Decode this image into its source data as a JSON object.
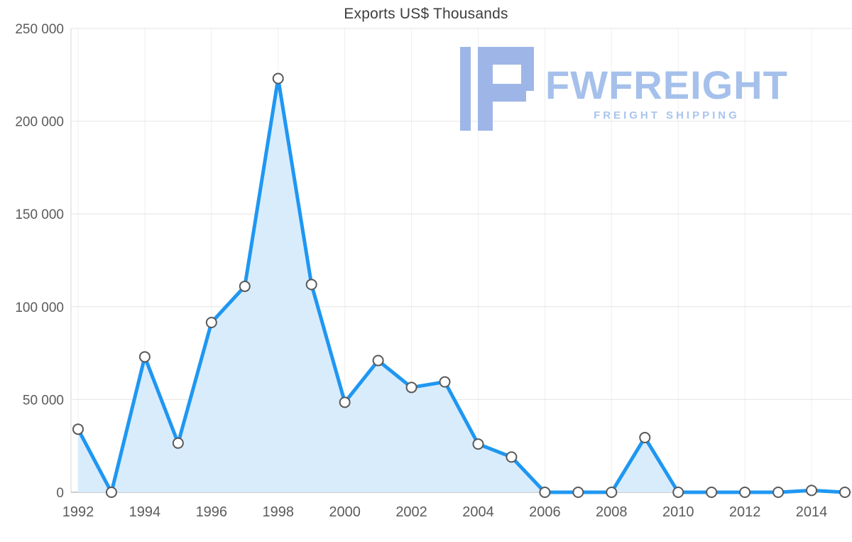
{
  "chart_data": {
    "type": "area",
    "title": "Exports US$ Thousands",
    "xlabel": "",
    "ylabel": "",
    "x": [
      1992,
      1993,
      1994,
      1995,
      1996,
      1997,
      1998,
      1999,
      2000,
      2001,
      2002,
      2003,
      2004,
      2005,
      2006,
      2007,
      2008,
      2009,
      2010,
      2011,
      2012,
      2013,
      2014,
      2015
    ],
    "values": [
      34000,
      0,
      73000,
      26500,
      91500,
      111000,
      223000,
      112000,
      48500,
      71000,
      56500,
      59500,
      26000,
      19000,
      0,
      0,
      0,
      29500,
      0,
      0,
      0,
      0,
      1000,
      0
    ],
    "ylim": [
      0,
      250000
    ],
    "y_ticks": [
      0,
      50000,
      100000,
      150000,
      200000,
      250000
    ],
    "y_tick_labels": [
      "0",
      "50 000",
      "100 000",
      "150 000",
      "200 000",
      "250 000"
    ],
    "x_tick_years": [
      1992,
      1994,
      1996,
      1998,
      2000,
      2002,
      2004,
      2006,
      2008,
      2010,
      2012,
      2014
    ],
    "grid": true,
    "legend": "none",
    "colors": {
      "line": "#1f97f2",
      "area": "#d9ecfc",
      "marker_fill": "#ffffff",
      "marker_stroke": "#595959",
      "grid_h": "#e4e4e4",
      "grid_v": "#efefef",
      "zero_line": "#9c9c9c",
      "axis": "#d6d6d6",
      "tick_text": "#5b5b5b",
      "title_text": "#3e3e3e"
    }
  },
  "watermark": {
    "brand": "FWFREIGHT",
    "tagline": "FREIGHT SHIPPING",
    "brand_color": "#a5c0eb",
    "tagline_color": "#a9c4ee",
    "logo_color": "#9eb6e7"
  }
}
